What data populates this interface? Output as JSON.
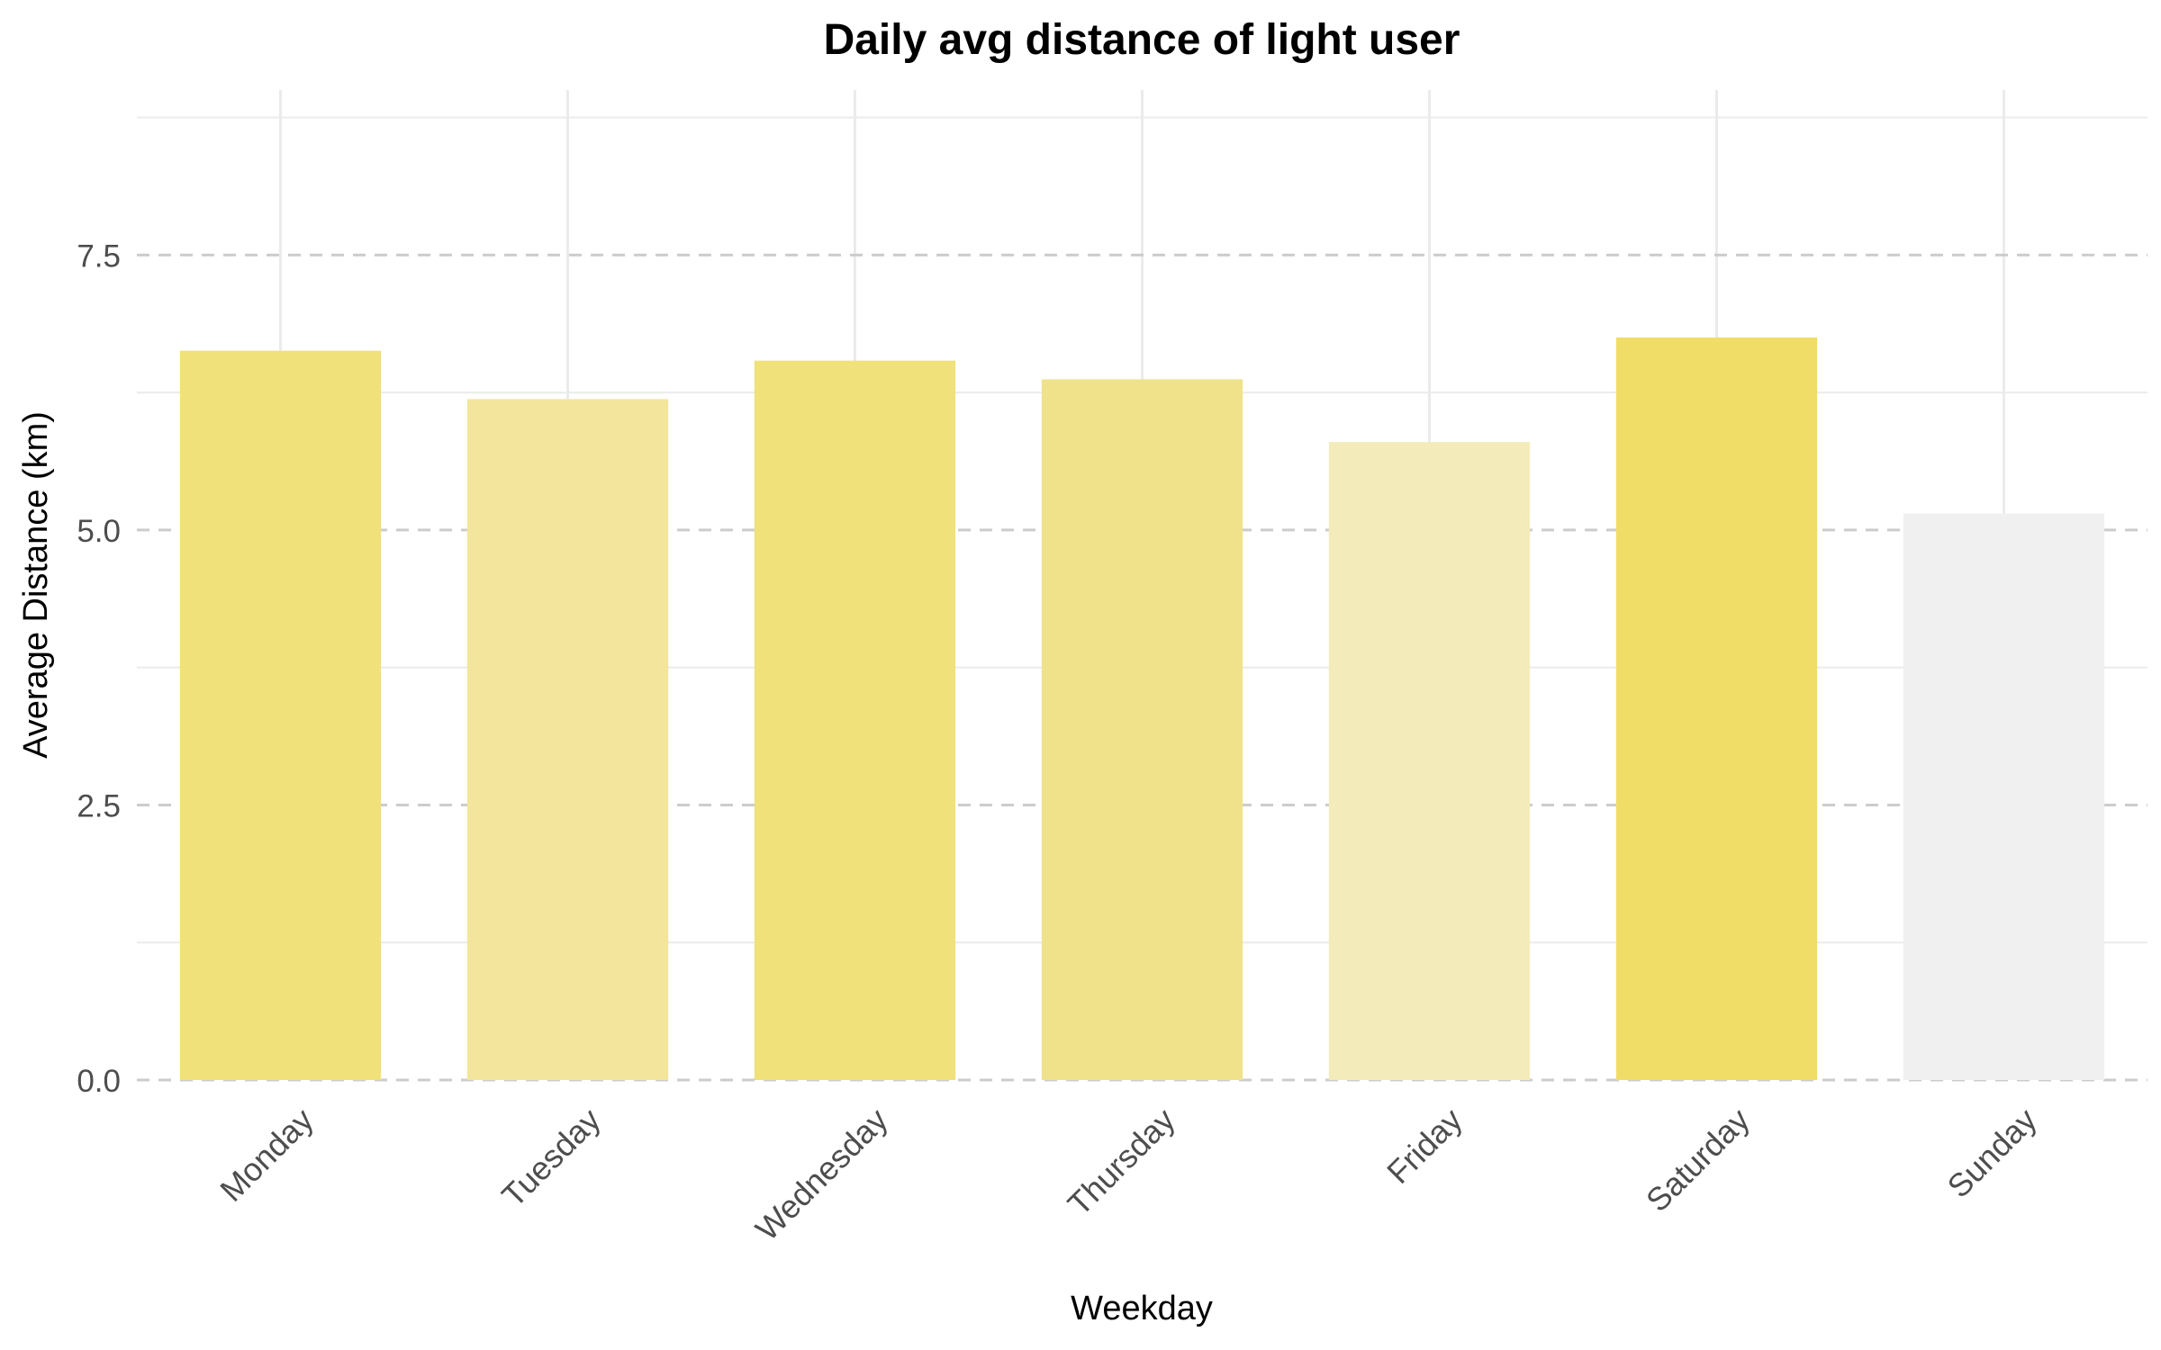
{
  "chart_data": {
    "type": "bar",
    "title": "Daily avg distance of light user",
    "xlabel": "Weekday",
    "ylabel": "Average Distance (km)",
    "categories": [
      "Monday",
      "Tuesday",
      "Wednesday",
      "Thursday",
      "Friday",
      "Saturday",
      "Sunday"
    ],
    "values": [
      6.63,
      6.19,
      6.54,
      6.37,
      5.8,
      6.75,
      5.15
    ],
    "bar_colors": [
      "#f0e17a",
      "#f3e59c",
      "#f0e17a",
      "#f0e28a",
      "#f4ebbb",
      "#f0dd68",
      "#f0f0f0"
    ],
    "ylim": [
      0,
      9.0
    ],
    "yticks": [
      0.0,
      2.5,
      5.0,
      7.5
    ],
    "ytick_labels": [
      "0.0",
      "2.5",
      "5.0",
      "7.5"
    ],
    "grid": true,
    "major_gridline_style": "dashed",
    "legend": "none"
  }
}
